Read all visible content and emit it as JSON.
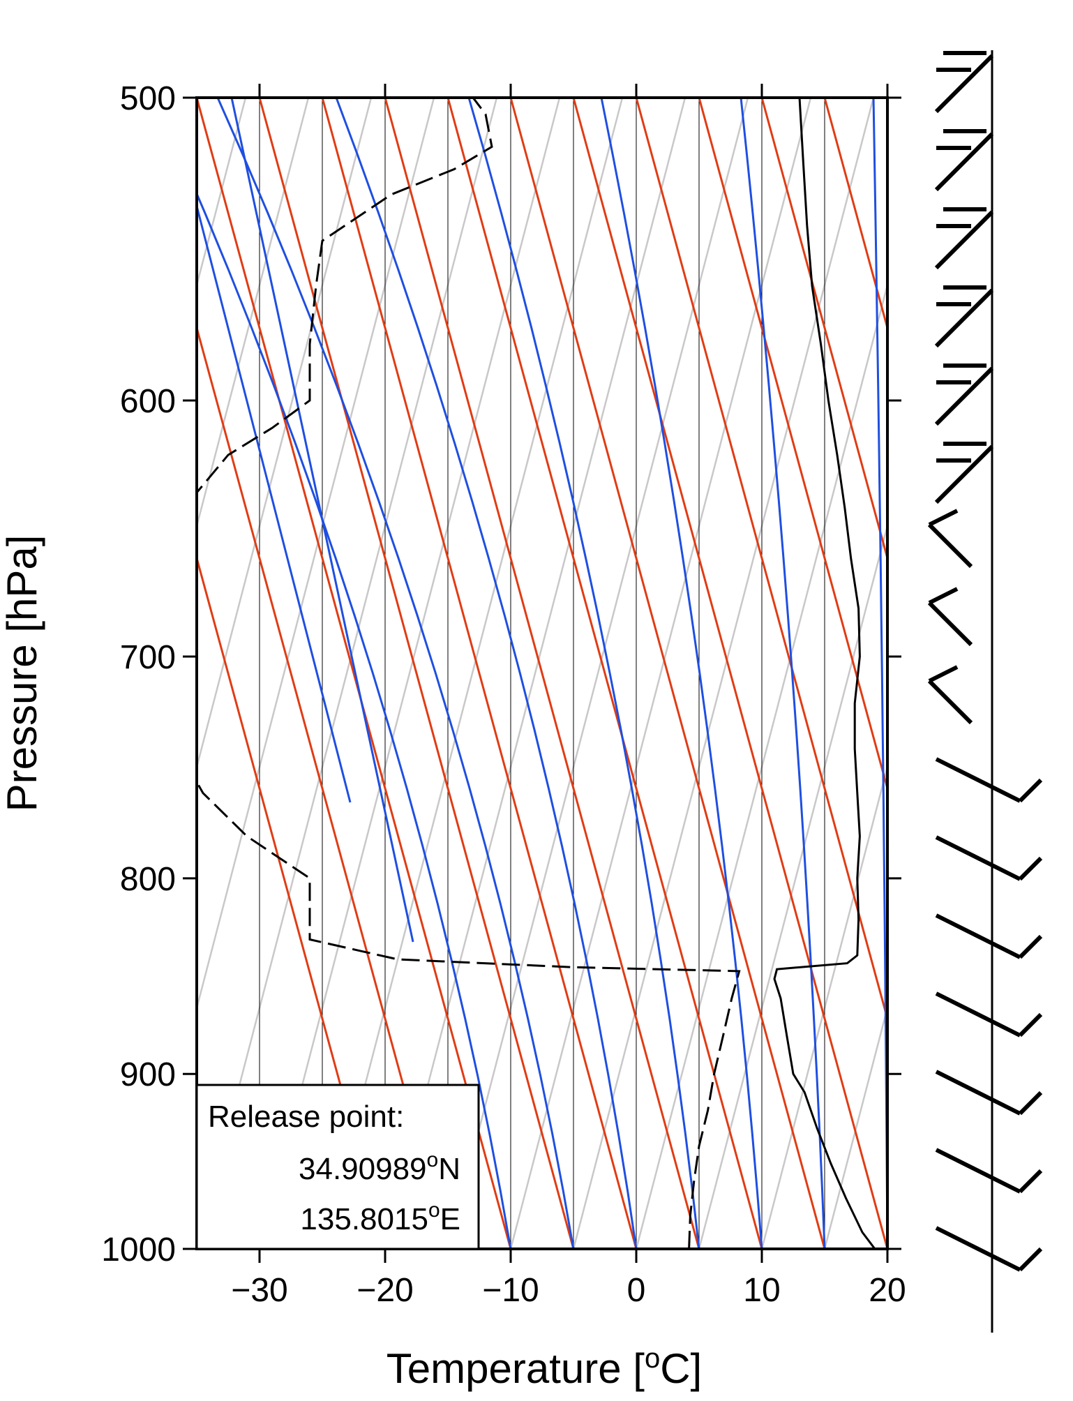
{
  "chart_data": {
    "type": "skew-t",
    "title": "",
    "xlabel": "Temperature [",
    "xlabel_sup": "o",
    "xlabel_end": "C]",
    "ylabel": "Pressure  [hPa]",
    "x_ticks": [
      -30,
      -20,
      -10,
      0,
      10,
      20
    ],
    "x_tick_labels": [
      "−30",
      "−20",
      "−10",
      "0",
      "10",
      "20"
    ],
    "y_ticks": [
      500,
      600,
      700,
      800,
      900,
      1000
    ],
    "y_tick_labels": [
      "500",
      "600",
      "700",
      "800",
      "900",
      "1000"
    ],
    "xlim": [
      -35,
      20
    ],
    "ylim": [
      1000,
      500
    ],
    "vertical_gridlines_at_1000hPa": [
      -30,
      -25,
      -20,
      -15,
      -10,
      -5,
      0,
      5,
      10,
      15
    ],
    "dry_adiabats_color": "#e03c14",
    "moist_adiabats_color": "#1f4fe0",
    "mixing_ratio_color": "#c8c8c8",
    "temperature": {
      "color": "#000000",
      "style": "solid",
      "points": [
        [
          1000,
          19.0
        ],
        [
          990,
          18.0
        ],
        [
          970,
          16.7
        ],
        [
          950,
          15.5
        ],
        [
          930,
          14.4
        ],
        [
          910,
          13.4
        ],
        [
          900,
          12.5
        ],
        [
          880,
          12.0
        ],
        [
          860,
          11.5
        ],
        [
          850,
          11.0
        ],
        [
          845,
          11.2
        ],
        [
          842,
          16.8
        ],
        [
          838,
          17.6
        ],
        [
          820,
          17.7
        ],
        [
          800,
          17.6
        ],
        [
          780,
          17.8
        ],
        [
          760,
          17.6
        ],
        [
          740,
          17.4
        ],
        [
          720,
          17.4
        ],
        [
          700,
          17.8
        ],
        [
          680,
          17.7
        ],
        [
          660,
          17.1
        ],
        [
          640,
          16.6
        ],
        [
          620,
          16.0
        ],
        [
          600,
          15.3
        ],
        [
          580,
          14.7
        ],
        [
          560,
          14.0
        ],
        [
          540,
          13.6
        ],
        [
          520,
          13.3
        ],
        [
          500,
          13.0
        ]
      ]
    },
    "dewpoint": {
      "color": "#000000",
      "style": "dashed",
      "points": [
        [
          1000,
          4.2
        ],
        [
          980,
          4.3
        ],
        [
          960,
          4.6
        ],
        [
          940,
          5.0
        ],
        [
          920,
          5.7
        ],
        [
          900,
          6.2
        ],
        [
          880,
          6.9
        ],
        [
          860,
          7.6
        ],
        [
          846,
          8.2
        ],
        [
          844,
          -5.0
        ],
        [
          840,
          -19.0
        ],
        [
          830,
          -26.0
        ],
        [
          800,
          -26.0
        ],
        [
          780,
          -31.0
        ],
        [
          760,
          -34.5
        ],
        [
          740,
          -36.5
        ],
        [
          720,
          -37.5
        ],
        [
          700,
          -38.5
        ],
        [
          680,
          -39.5
        ],
        [
          660,
          -37.0
        ],
        [
          640,
          -36.0
        ],
        [
          620,
          -32.5
        ],
        [
          610,
          -29.0
        ],
        [
          600,
          -26.0
        ],
        [
          580,
          -26.0
        ],
        [
          560,
          -25.5
        ],
        [
          545,
          -25.0
        ],
        [
          530,
          -19.5
        ],
        [
          522,
          -14.5
        ],
        [
          515,
          -11.5
        ],
        [
          505,
          -12.0
        ],
        [
          500,
          -13.0
        ]
      ]
    },
    "wind_barbs": {
      "color": "#000000",
      "count": 16
    },
    "annotation": {
      "line1": "Release point:",
      "lat_value": "34.90989",
      "lat_suffix": "N",
      "lon_value": "135.8015",
      "lon_suffix": "E",
      "degree_mark": "o"
    }
  }
}
